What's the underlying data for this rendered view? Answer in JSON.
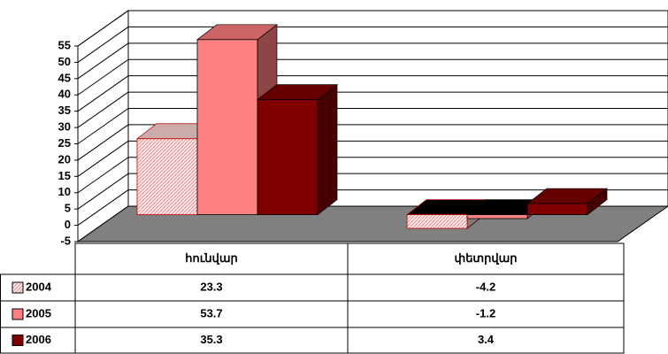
{
  "chart_data": {
    "type": "bar3d",
    "categories": [
      "հունվար",
      "փետրվար"
    ],
    "series": [
      {
        "name": "2004",
        "color": "#ffd6d6",
        "values": [
          23.3,
          -4.2
        ]
      },
      {
        "name": "2005",
        "color": "#ff8080",
        "values": [
          53.7,
          -1.2
        ]
      },
      {
        "name": "2006",
        "color": "#800000",
        "values": [
          35.3,
          3.4
        ]
      }
    ],
    "ylim": [
      -5,
      55
    ],
    "yticks": [
      -5,
      0,
      5,
      10,
      15,
      20,
      25,
      30,
      35,
      40,
      45,
      50,
      55
    ],
    "grid": true,
    "floor_color": "#808080"
  }
}
